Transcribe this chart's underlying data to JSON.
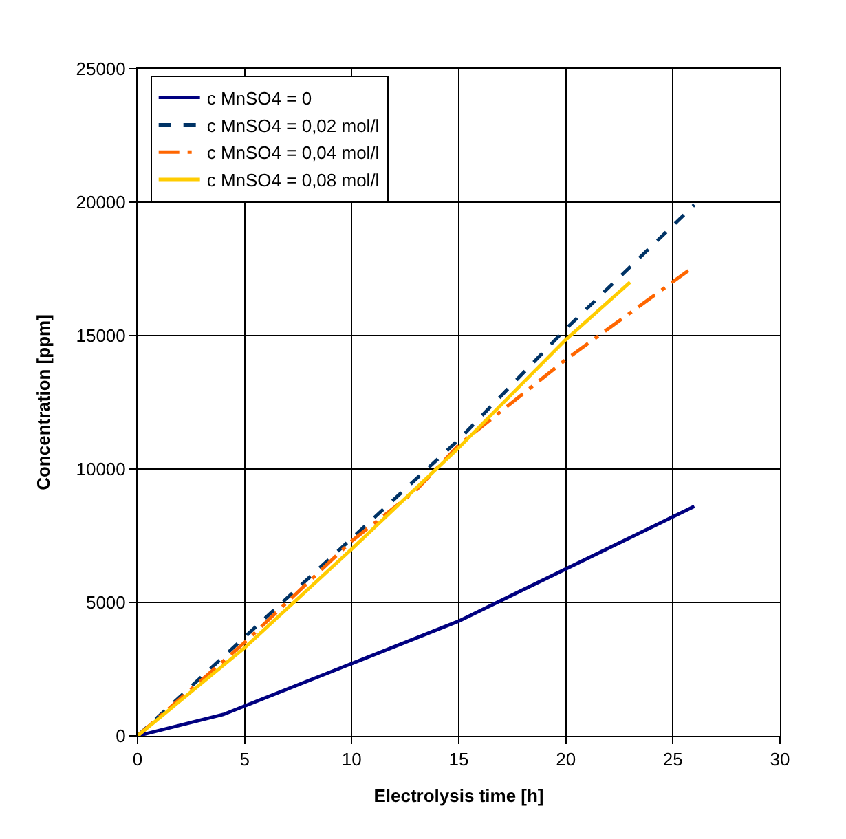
{
  "chart_data": {
    "type": "line",
    "xlabel": "Electrolysis time [h]",
    "ylabel": "Concentration [ppm]",
    "xlim": [
      0,
      30
    ],
    "xticks": [
      0,
      5,
      10,
      15,
      20,
      25,
      30
    ],
    "ylim": [
      0,
      25000
    ],
    "yticks": [
      0,
      5000,
      10000,
      15000,
      20000,
      25000
    ],
    "grid": true,
    "legend": "top left",
    "marker": "none",
    "series": [
      {
        "name": "c MnSO4 = 0",
        "color": "#000080",
        "line_style": "solid",
        "x": [
          0,
          4,
          15,
          26
        ],
        "values": [
          0,
          800,
          4300,
          8600
        ]
      },
      {
        "name": "c MnSO4 = 0,02 mol/l",
        "color": "#003366",
        "line_style": "dashed",
        "x": [
          0,
          5,
          10,
          15,
          20,
          26
        ],
        "values": [
          0,
          3700,
          7400,
          11100,
          15250,
          19900
        ]
      },
      {
        "name": "c MnSO4 = 0,04 mol/l",
        "color": "#ff6600",
        "line_style": "dashdot",
        "x": [
          0,
          5,
          10,
          13,
          15,
          20,
          26
        ],
        "values": [
          0,
          3500,
          7300,
          9200,
          10900,
          14100,
          17600
        ]
      },
      {
        "name": "c MnSO4 = 0,08 mol/l",
        "color": "#ffcc00",
        "line_style": "solid",
        "x": [
          0,
          5,
          10,
          15,
          20,
          23
        ],
        "values": [
          0,
          3300,
          7000,
          10800,
          14850,
          17000
        ]
      }
    ]
  }
}
